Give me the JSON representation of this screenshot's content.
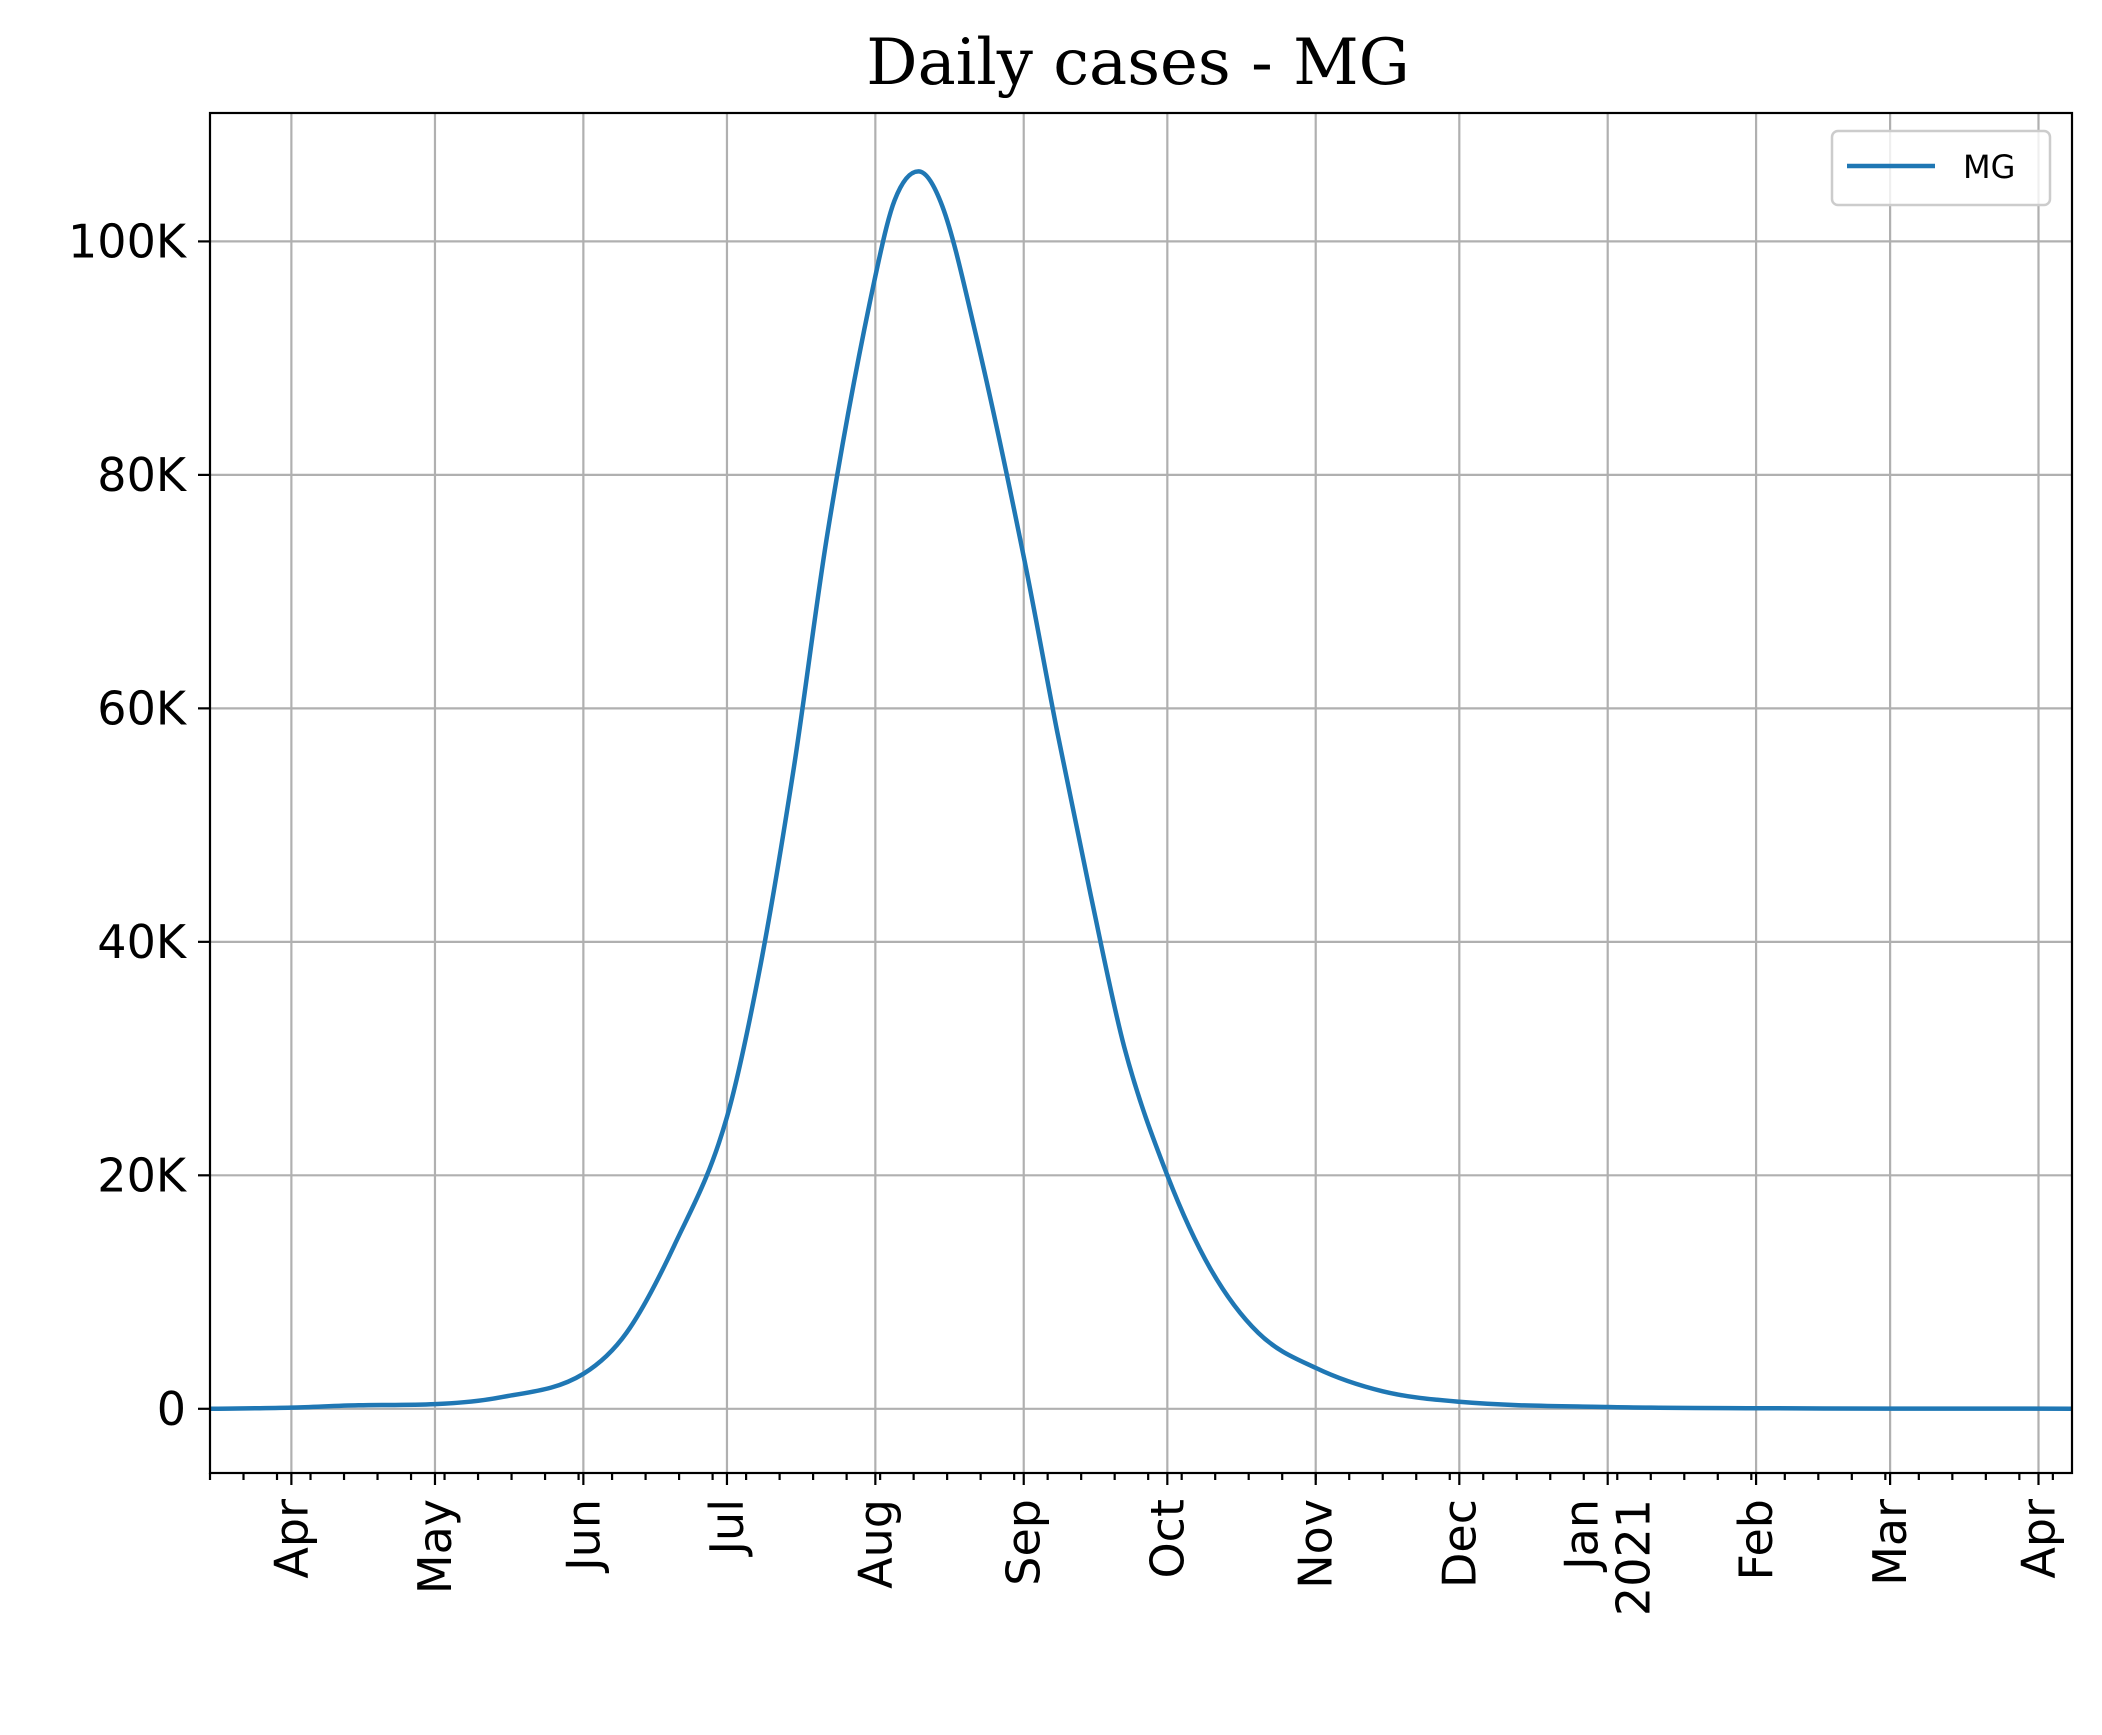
{
  "chart_data": {
    "type": "line",
    "title": "Daily cases - MG",
    "xlabel": "",
    "ylabel": "",
    "x_axis": "date",
    "xlim": [
      "2020-03-15",
      "2021-04-08"
    ],
    "ylim": [
      -5500,
      111000
    ],
    "y_ticks": [
      {
        "value": 0,
        "label": "0"
      },
      {
        "value": 20000,
        "label": "20K"
      },
      {
        "value": 40000,
        "label": "40K"
      },
      {
        "value": 60000,
        "label": "60K"
      },
      {
        "value": 80000,
        "label": "80K"
      },
      {
        "value": 100000,
        "label": "100K"
      }
    ],
    "x_ticks": [
      {
        "date": "2020-04-01",
        "label": "Apr"
      },
      {
        "date": "2020-05-01",
        "label": "May"
      },
      {
        "date": "2020-06-01",
        "label": "Jun"
      },
      {
        "date": "2020-07-01",
        "label": "Jul"
      },
      {
        "date": "2020-08-01",
        "label": "Aug"
      },
      {
        "date": "2020-09-01",
        "label": "Sep"
      },
      {
        "date": "2020-10-01",
        "label": "Oct"
      },
      {
        "date": "2020-11-01",
        "label": "Nov"
      },
      {
        "date": "2020-12-01",
        "label": "Dec"
      },
      {
        "date": "2021-01-01",
        "label": "Jan\n2021"
      },
      {
        "date": "2021-02-01",
        "label": "Feb"
      },
      {
        "date": "2021-03-01",
        "label": "Mar"
      },
      {
        "date": "2021-04-01",
        "label": "Apr"
      }
    ],
    "grid": true,
    "legend_position": "top-right",
    "series": [
      {
        "name": "MG",
        "color": "#1f77b4",
        "points": [
          {
            "x": "2020-03-15",
            "y": 0
          },
          {
            "x": "2020-04-01",
            "y": 100
          },
          {
            "x": "2020-04-15",
            "y": 300
          },
          {
            "x": "2020-05-01",
            "y": 400
          },
          {
            "x": "2020-05-15",
            "y": 1000
          },
          {
            "x": "2020-06-01",
            "y": 3000
          },
          {
            "x": "2020-06-10",
            "y": 6500
          },
          {
            "x": "2020-06-20",
            "y": 14000
          },
          {
            "x": "2020-07-01",
            "y": 25000
          },
          {
            "x": "2020-07-08",
            "y": 38000
          },
          {
            "x": "2020-07-15",
            "y": 55000
          },
          {
            "x": "2020-07-22",
            "y": 75000
          },
          {
            "x": "2020-08-01",
            "y": 97000
          },
          {
            "x": "2020-08-05",
            "y": 103500
          },
          {
            "x": "2020-08-10",
            "y": 106000
          },
          {
            "x": "2020-08-15",
            "y": 103000
          },
          {
            "x": "2020-08-22",
            "y": 92000
          },
          {
            "x": "2020-09-01",
            "y": 73000
          },
          {
            "x": "2020-09-08",
            "y": 58000
          },
          {
            "x": "2020-09-15",
            "y": 44000
          },
          {
            "x": "2020-09-22",
            "y": 31000
          },
          {
            "x": "2020-10-01",
            "y": 20000
          },
          {
            "x": "2020-10-10",
            "y": 12000
          },
          {
            "x": "2020-10-20",
            "y": 6500
          },
          {
            "x": "2020-11-01",
            "y": 3500
          },
          {
            "x": "2020-11-15",
            "y": 1500
          },
          {
            "x": "2020-12-01",
            "y": 600
          },
          {
            "x": "2021-01-01",
            "y": 150
          },
          {
            "x": "2021-02-01",
            "y": 50
          },
          {
            "x": "2021-03-01",
            "y": 20
          },
          {
            "x": "2021-04-08",
            "y": 10
          }
        ]
      }
    ]
  }
}
